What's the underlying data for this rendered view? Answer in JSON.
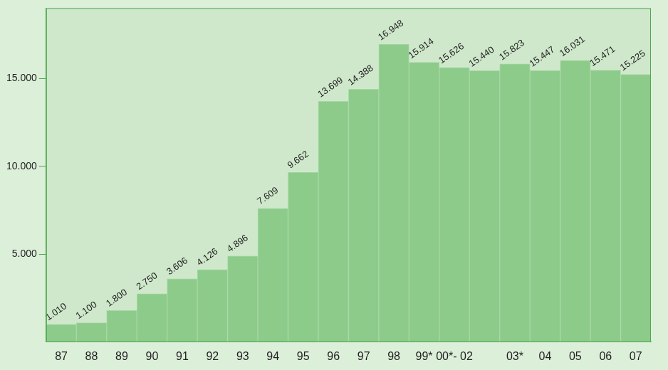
{
  "chart_data": {
    "type": "bar",
    "categories": [
      "87",
      "88",
      "89",
      "90",
      "91",
      "92",
      "93",
      "94",
      "95",
      "96",
      "97",
      "98",
      "99*",
      "00*- 02",
      null,
      "03*",
      "04",
      "05",
      "06",
      "07"
    ],
    "values": [
      1010,
      1100,
      1800,
      2750,
      3606,
      4126,
      4896,
      7609,
      9662,
      13699,
      14388,
      16948,
      15914,
      15626,
      15440,
      15823,
      15447,
      16031,
      15471,
      15225
    ],
    "value_labels": [
      "1.010",
      "1.100",
      "1.800",
      "2.750",
      "3.606",
      "4.126",
      "4.896",
      "7.609",
      "9.662",
      "13.699",
      "14.388",
      "16.948",
      "15.914",
      "15.626",
      "15.440",
      "15.823",
      "15.447",
      "16.031",
      "15.471",
      "15.225"
    ],
    "color": "#8dcb8b",
    "ylim": [
      0,
      19000
    ],
    "yticks": [
      {
        "value": 5000,
        "label": "5.000"
      },
      {
        "value": 10000,
        "label": "10.000"
      },
      {
        "value": 15000,
        "label": "15.000"
      }
    ],
    "grid": false,
    "data_labels": true
  }
}
